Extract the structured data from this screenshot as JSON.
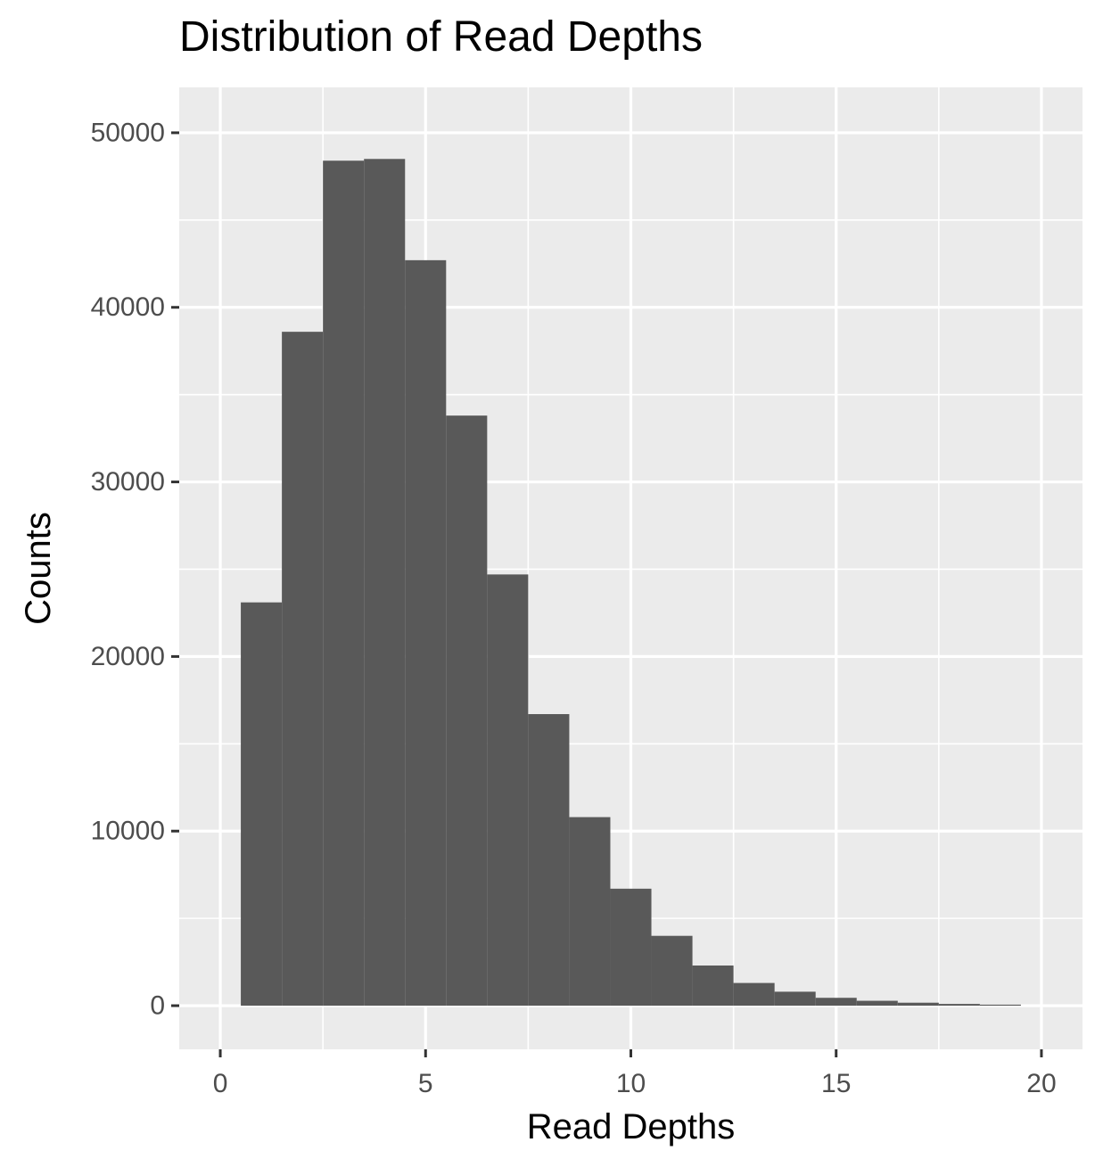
{
  "chart_data": {
    "type": "bar",
    "title": "Distribution of Read Depths",
    "xlabel": "Read Depths",
    "ylabel": "Counts",
    "xlim": [
      -1,
      21
    ],
    "ylim": [
      -2500,
      52600
    ],
    "x_ticks": [
      0,
      5,
      10,
      15,
      20
    ],
    "y_ticks": [
      0,
      10000,
      20000,
      30000,
      40000,
      50000
    ],
    "x_tick_labels": [
      "0",
      "5",
      "10",
      "15",
      "20"
    ],
    "y_tick_labels": [
      "0",
      "10000",
      "20000",
      "30000",
      "40000",
      "50000"
    ],
    "bin_width": 1,
    "bins": [
      {
        "x": 1,
        "count": 23100
      },
      {
        "x": 2,
        "count": 38600
      },
      {
        "x": 3,
        "count": 48400
      },
      {
        "x": 4,
        "count": 48500
      },
      {
        "x": 5,
        "count": 42700
      },
      {
        "x": 6,
        "count": 33800
      },
      {
        "x": 7,
        "count": 24700
      },
      {
        "x": 8,
        "count": 16700
      },
      {
        "x": 9,
        "count": 10800
      },
      {
        "x": 10,
        "count": 6700
      },
      {
        "x": 11,
        "count": 4000
      },
      {
        "x": 12,
        "count": 2300
      },
      {
        "x": 13,
        "count": 1300
      },
      {
        "x": 14,
        "count": 800
      },
      {
        "x": 15,
        "count": 450
      },
      {
        "x": 16,
        "count": 280
      },
      {
        "x": 17,
        "count": 170
      },
      {
        "x": 18,
        "count": 100
      },
      {
        "x": 19,
        "count": 60
      }
    ],
    "grid": true,
    "colors": {
      "panel_background": "#ebebeb",
      "grid_line": "#ffffff",
      "bar_fill": "#595959",
      "tick_label": "#4d4d4d",
      "tick_mark": "#333333"
    }
  }
}
